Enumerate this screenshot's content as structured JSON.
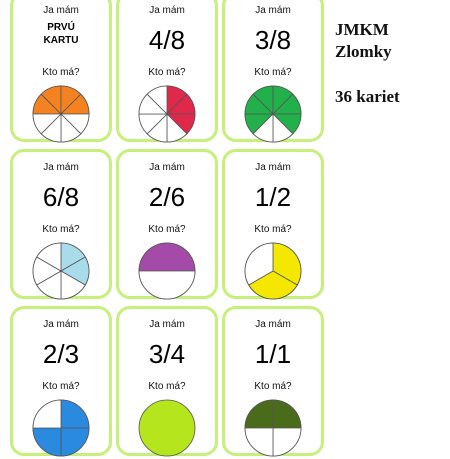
{
  "cards": [
    {
      "top": "Ja mám",
      "main": "PRVÚ KARTU",
      "bottom": "Kto má?",
      "pie": {
        "parts": 8,
        "filled": 4,
        "color": "#f58220"
      }
    },
    {
      "top": "Ja mám",
      "main": "4/8",
      "bottom": "Kto má?",
      "pie": {
        "parts": 8,
        "filled": 3,
        "color": "#e0284a"
      }
    },
    {
      "top": "Ja mám",
      "main": "3/8",
      "bottom": "Kto má?",
      "pie": {
        "parts": 8,
        "filled": 6,
        "color": "#22b04a"
      }
    },
    {
      "top": "Ja mám",
      "main": "6/8",
      "bottom": "Kto má?",
      "pie": {
        "parts": 6,
        "filled": 2,
        "color": "#a8dcea"
      }
    },
    {
      "top": "Ja mám",
      "main": "2/6",
      "bottom": "Kto má?",
      "pie": {
        "parts": 2,
        "filled": 1,
        "color": "#a44aa8"
      }
    },
    {
      "top": "Ja mám",
      "main": "1/2",
      "bottom": "Kto má?",
      "pie": {
        "parts": 3,
        "filled": 2,
        "color": "#f5e800"
      }
    },
    {
      "top": "Ja mám",
      "main": "2/3",
      "bottom": "Kto má?",
      "pie": {
        "parts": 4,
        "filled": 3,
        "color": "#2a8ae0"
      }
    },
    {
      "top": "Ja mám",
      "main": "3/4",
      "bottom": "Kto má?",
      "pie": {
        "parts": 1,
        "filled": 1,
        "color": "#b5e61d"
      }
    },
    {
      "top": "Ja mám",
      "main": "1/1",
      "bottom": "Kto má?",
      "pie": {
        "parts": 4,
        "filled": 2,
        "color": "#4a6b1a"
      }
    }
  ],
  "side": {
    "title1": "JMKM",
    "title2": "Zlomky",
    "count": "36 kariet"
  }
}
